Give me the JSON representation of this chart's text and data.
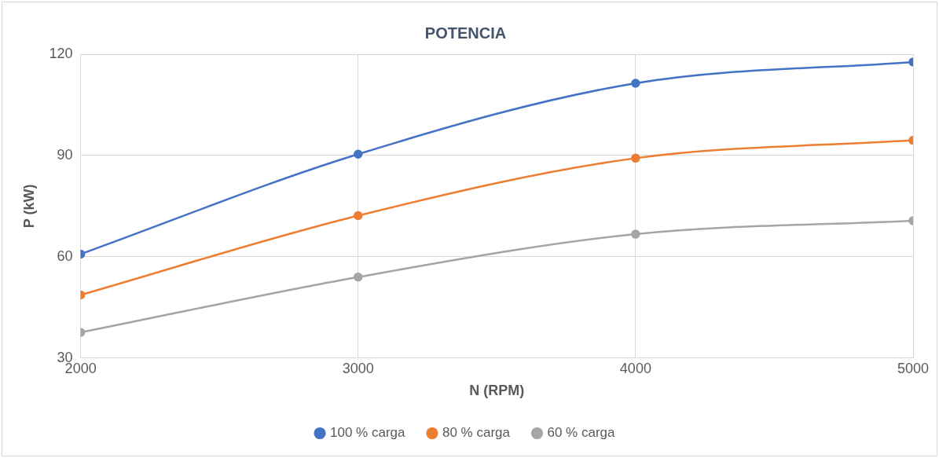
{
  "chart_data": {
    "type": "line",
    "title": "POTENCIA",
    "xlabel": "N (RPM)",
    "ylabel": "P (kW)",
    "x": [
      2000,
      3000,
      4000,
      5000
    ],
    "series": [
      {
        "name": "100 % carga",
        "color": "#4472c4",
        "values": [
          60.8,
          90.4,
          111.4,
          117.7
        ]
      },
      {
        "name": "80 % carga",
        "color": "#ed7d31",
        "values": [
          48.7,
          72.2,
          89.2,
          94.5
        ]
      },
      {
        "name": "60 % carga",
        "color": "#a5a5a5",
        "values": [
          37.6,
          54,
          66.7,
          70.7
        ]
      }
    ],
    "xlim": [
      2000,
      5000
    ],
    "xticks": [
      2000,
      3000,
      4000,
      5000
    ],
    "ylim": [
      30,
      120
    ],
    "yticks": [
      30,
      60,
      90,
      120
    ],
    "grid": true,
    "legend": "bottom",
    "marker": "circle",
    "line_style": "solid"
  }
}
